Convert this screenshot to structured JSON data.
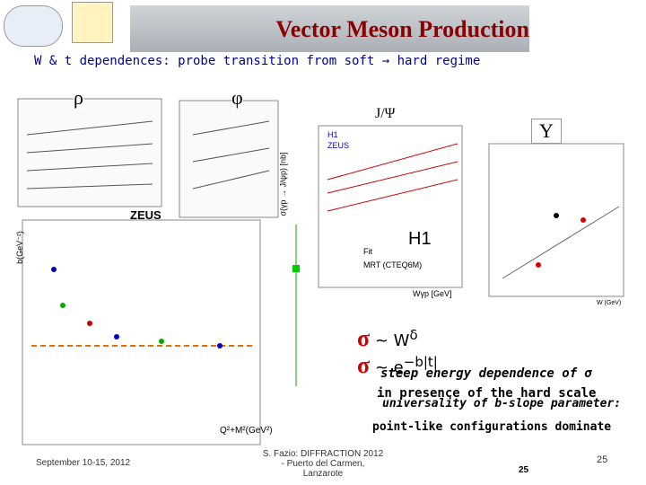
{
  "header": {
    "title": "Vector Meson Production",
    "subtitle": "W & t dependences: probe transition from soft → hard regime"
  },
  "mesons": [
    "ρ",
    "φ",
    "J/Ψ",
    "Υ"
  ],
  "plots": {
    "big": {
      "experiment": "ZEUS",
      "xlabel": "Q²+M²(GeV²)",
      "ylabel": "b(GeV⁻²)"
    },
    "jpsi": {
      "experiment": "H1",
      "legend": [
        "H1",
        "ZEUS",
        "Fit",
        "MRT (CTEQ6M)"
      ],
      "xlabel": "Wγp [GeV]",
      "ylabel": "σ(γp → J/ψp) [nb]"
    },
    "upsilon": {
      "xlabel": "W (GeV)"
    }
  },
  "formulas": [
    {
      "symbol": "σ",
      "main": " ~ W",
      "exponent": "δ"
    },
    {
      "symbol": "σ",
      "main": " ~ e",
      "exponent": "−b|t|"
    }
  ],
  "notes": [
    "steep energy dependence of σ",
    "in presence of the hard scale",
    "universality of b-slope parameter:",
    "point-like configurations dominate"
  ],
  "footer": {
    "date": "September 10-15, 2012",
    "author": "S. Fazio: DIFFRACTION 2012 - Puerto del Carmen, Lanzarote",
    "page_center": "25",
    "page_right": "25"
  }
}
